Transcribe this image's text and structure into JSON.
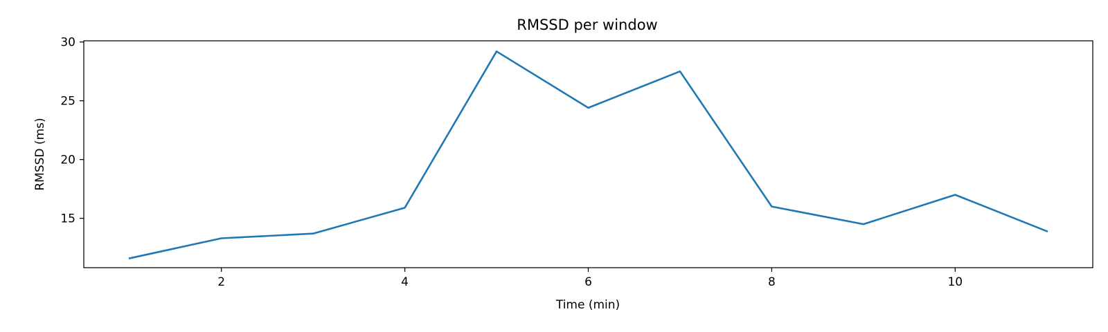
{
  "chart_data": {
    "type": "line",
    "title": "RMSSD per window",
    "xlabel": "Time (min)",
    "ylabel": "RMSSD (ms)",
    "x": [
      1,
      2,
      3,
      4,
      5,
      6,
      7,
      8,
      9,
      10,
      11
    ],
    "series": [
      {
        "values": [
          11.6,
          13.3,
          13.7,
          15.9,
          29.2,
          24.4,
          27.5,
          16.0,
          14.5,
          17.0,
          13.9
        ],
        "color": "#1f77b4"
      }
    ],
    "xlim": [
      0.5,
      11.5
    ],
    "ylim": [
      10.8,
      30.1
    ],
    "xticks": [
      2,
      4,
      6,
      8,
      10
    ],
    "yticks": [
      15,
      20,
      25,
      30
    ],
    "grid": false,
    "legend": "none"
  }
}
